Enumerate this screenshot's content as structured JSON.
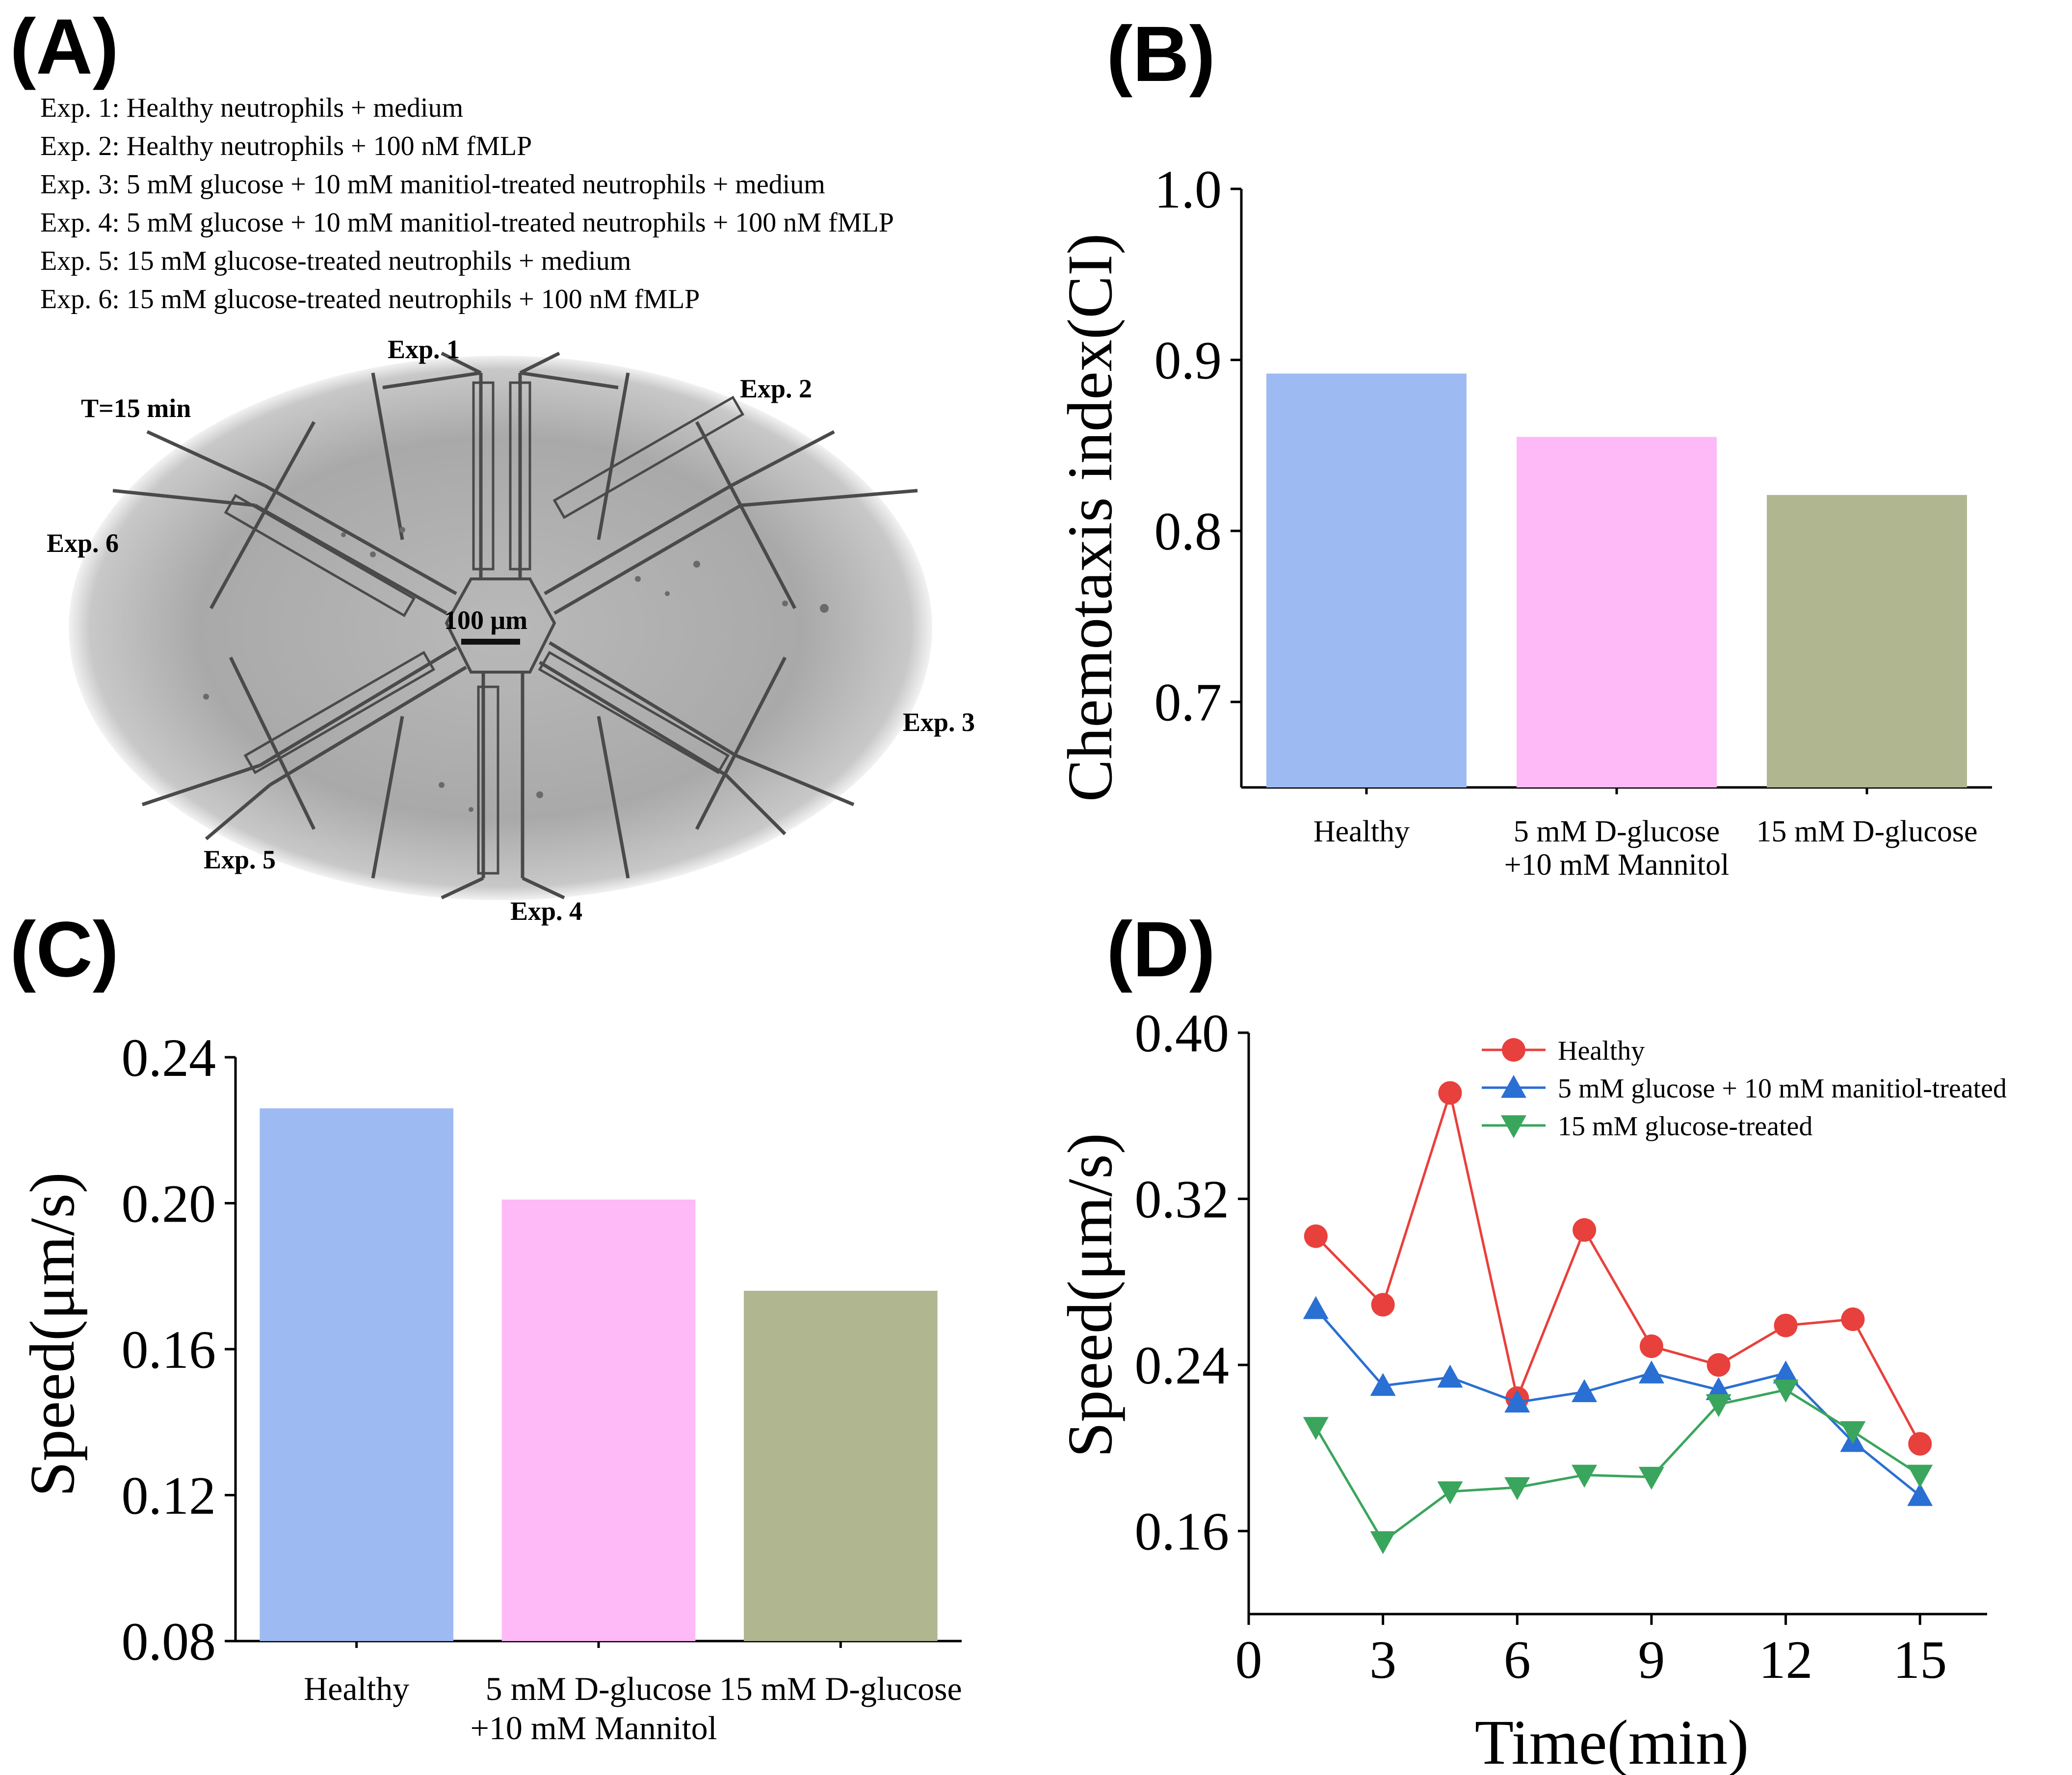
{
  "figure": {
    "panels": [
      "(A)",
      "(B)",
      "(C)",
      "(D)"
    ]
  },
  "panel_a": {
    "experiments": [
      "Exp. 1: Healthy neutrophils + medium",
      "Exp. 2: Healthy neutrophils + 100 nM fMLP",
      "Exp. 3: 5 mM glucose + 10 mM manitiol-treated neutrophils + medium",
      "Exp. 4: 5 mM glucose + 10 mM manitiol-treated neutrophils + 100 nM fMLP",
      "Exp. 5: 15 mM glucose-treated neutrophils + medium",
      "Exp. 6: 15 mM glucose-treated neutrophils + 100 nM fMLP"
    ],
    "image_labels": {
      "time": "T=15 min",
      "exp1": "Exp. 1",
      "exp2": "Exp. 2",
      "exp3": "Exp. 3",
      "exp4": "Exp. 4",
      "exp5": "Exp. 5",
      "exp6": "Exp. 6",
      "scale": "100 μm"
    }
  },
  "chart_data": [
    {
      "id": "B",
      "type": "bar",
      "ylabel": "Chemotaxis index(CI)",
      "xlabel": "",
      "ylim": [
        0.65,
        1.0
      ],
      "yticks": [
        "0.7",
        "0.8",
        "0.9",
        "1.0"
      ],
      "yticks_values": [
        0.7,
        0.8,
        0.9,
        1.0
      ],
      "categories": [
        "Healthy",
        "5 mM D-glucose +10 mM Mannitol",
        "15 mM D-glucose"
      ],
      "category_lines": [
        [
          "Healthy"
        ],
        [
          "5 mM D-glucose",
          "+10 mM Mannitol"
        ],
        [
          "15 mM D-glucose"
        ]
      ],
      "values": [
        0.892,
        0.855,
        0.821
      ],
      "colors": [
        "#9dbbf2",
        "#fdbaf7",
        "#b0b690"
      ]
    },
    {
      "id": "C",
      "type": "bar",
      "ylabel": "Speed(μm/s)",
      "xlabel": "",
      "ylim": [
        0.08,
        0.24
      ],
      "yticks": [
        "0.08",
        "0.12",
        "0.16",
        "0.20",
        "0.24"
      ],
      "yticks_values": [
        0.08,
        0.12,
        0.16,
        0.2,
        0.24
      ],
      "categories": [
        "Healthy",
        "5 mM D-glucose +10 mM Mannitol",
        "15 mM D-glucose"
      ],
      "category_lines": [
        [
          "Healthy"
        ],
        [
          "5 mM D-glucose",
          "+10 mM Mannitol"
        ],
        [
          "15 mM D-glucose"
        ]
      ],
      "values": [
        0.226,
        0.201,
        0.176
      ],
      "colors": [
        "#9dbbf2",
        "#fdbaf7",
        "#b0b690"
      ]
    },
    {
      "id": "D",
      "type": "line",
      "xlabel": "Time(min)",
      "ylabel": "Speed(μm/s)",
      "xlim": [
        0,
        16.5
      ],
      "ylim": [
        0.12,
        0.4
      ],
      "xticks": [
        "0",
        "3",
        "6",
        "9",
        "12",
        "15"
      ],
      "xticks_values": [
        0,
        3,
        6,
        9,
        12,
        15
      ],
      "yticks": [
        "0.16",
        "0.24",
        "0.32",
        "0.40"
      ],
      "yticks_values": [
        0.16,
        0.24,
        0.32,
        0.4
      ],
      "x": [
        1.5,
        3,
        4.5,
        6,
        7.5,
        9,
        10.5,
        12,
        13.5,
        15
      ],
      "series": [
        {
          "name": "Healthy",
          "marker": "circle",
          "color": "#e8403c",
          "values": [
            0.302,
            0.269,
            0.371,
            0.224,
            0.305,
            0.249,
            0.24,
            0.259,
            0.262,
            0.202
          ]
        },
        {
          "name": "5 mM glucose + 10 mM manitiol-treated",
          "marker": "triangle-up",
          "color": "#2a6fd3",
          "values": [
            0.267,
            0.23,
            0.234,
            0.222,
            0.227,
            0.236,
            0.228,
            0.236,
            0.203,
            0.177
          ]
        },
        {
          "name": "15 mM glucose-treated",
          "marker": "triangle-down",
          "color": "#3aa55c",
          "values": [
            0.21,
            0.155,
            0.179,
            0.181,
            0.187,
            0.186,
            0.221,
            0.228,
            0.208,
            0.187
          ]
        }
      ]
    }
  ]
}
